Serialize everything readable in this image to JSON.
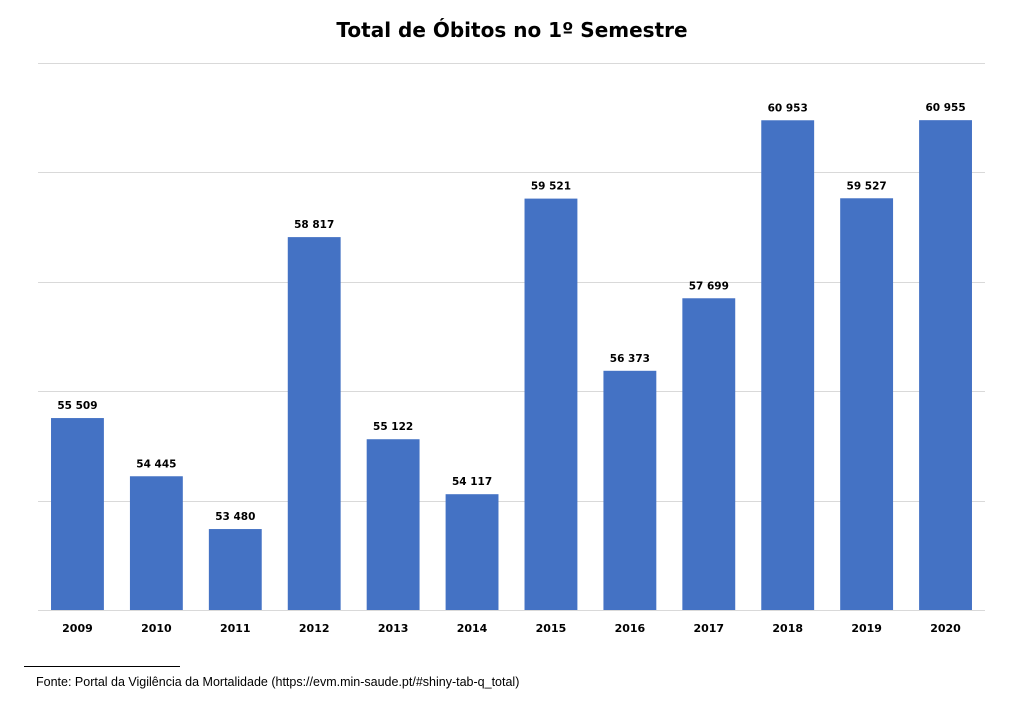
{
  "chart_data": {
    "type": "bar",
    "title": "Total de Óbitos no 1º Semestre",
    "xlabel": "",
    "ylabel": "",
    "categories": [
      "2009",
      "2010",
      "2011",
      "2012",
      "2013",
      "2014",
      "2015",
      "2016",
      "2017",
      "2018",
      "2019",
      "2020"
    ],
    "values": [
      55509,
      54445,
      53480,
      58817,
      55122,
      54117,
      59521,
      56373,
      57699,
      60953,
      59527,
      60955
    ],
    "data_labels": [
      "55 509",
      "54 445",
      "53 480",
      "58 817",
      "55 122",
      "54 117",
      "59 521",
      "56 373",
      "57 699",
      "60 953",
      "59 527",
      "60 955"
    ],
    "ylim": [
      52000,
      62000
    ],
    "grid": true,
    "y_axis_visible": false,
    "bar_color": "#4472C4",
    "grid_color": "#D9D9D9"
  },
  "source": "Fonte: Portal da Vigilência da Mortalidade (https://evm.min-saude.pt/#shiny-tab-q_total)"
}
